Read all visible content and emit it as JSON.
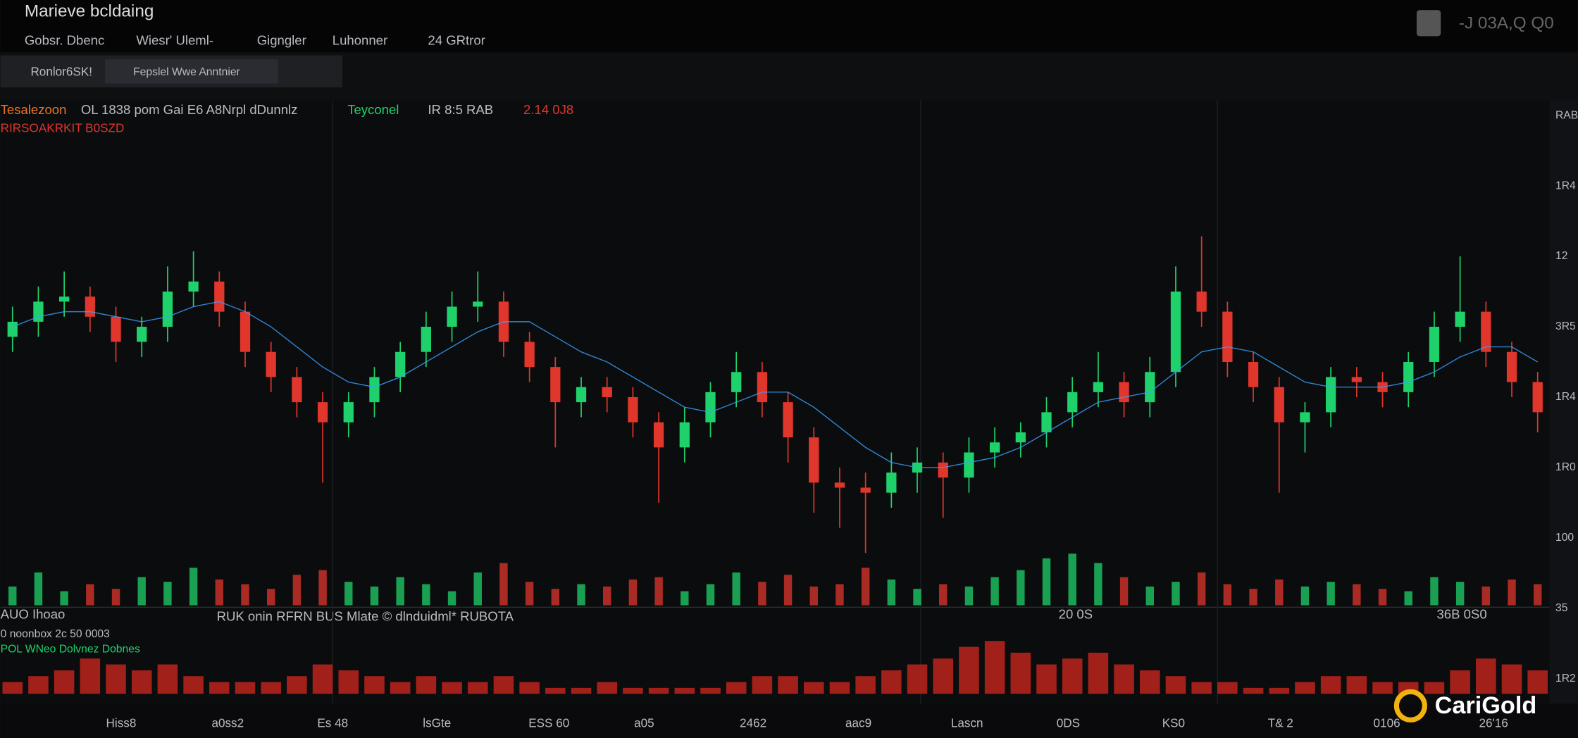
{
  "header": {
    "title": "Marieve bcldaing",
    "tabs": [
      "Gobsr. Dbenc",
      "Wiesr' Uleml-",
      "Gigngler",
      "Luhonner",
      "24 GRtror"
    ],
    "right_text": "-J 03A,Q Q0"
  },
  "toolbar": {
    "symbol": "Ronlor6SK!",
    "search": "Fepslel Wwe Anntnier"
  },
  "legend": {
    "name": "Tesalezoon",
    "info": "OL 1838 pom Gai E6 A8Nrpl dDunnlz",
    "tag": "Teyconel",
    "stat": "IR 8:5 RAB",
    "change": "2.14 0J8",
    "sub": "RIRSOAKRKIT B0SZD"
  },
  "pane": {
    "title": "RUK onin RFRN BUS Mlate © dlnduidml* RUBOTA",
    "mid": "20 0S",
    "right": "36B 0S0",
    "label1": "AUO Ihoao",
    "label2": "0 noonbox 2c 50 0003",
    "label3": "POL WNeo Dolvnez Dobnes"
  },
  "watermark": "CariGold",
  "chart_data": {
    "type": "candlestick",
    "up_color": "#1fd16a",
    "down_color": "#e0362c",
    "ylim": [
      0,
      100
    ],
    "open": [
      53,
      56,
      60,
      61,
      57,
      52,
      55,
      62,
      64,
      58,
      50,
      45,
      40,
      36,
      40,
      45,
      50,
      55,
      59,
      60,
      52,
      47,
      40,
      43,
      41,
      36,
      31,
      36,
      42,
      46,
      40,
      33,
      24,
      23,
      22,
      26,
      28,
      25,
      30,
      32,
      34,
      38,
      42,
      44,
      40,
      46,
      62,
      58,
      48,
      43,
      36,
      38,
      45,
      44,
      42,
      48,
      55,
      58,
      50,
      44
    ],
    "high": [
      59,
      63,
      66,
      63,
      59,
      57,
      67,
      70,
      66,
      60,
      52,
      47,
      42,
      42,
      47,
      52,
      58,
      62,
      66,
      62,
      54,
      49,
      45,
      45,
      43,
      38,
      39,
      44,
      50,
      48,
      42,
      35,
      27,
      26,
      30,
      31,
      30,
      33,
      35,
      36,
      41,
      45,
      50,
      46,
      49,
      67,
      73,
      60,
      50,
      45,
      40,
      47,
      47,
      46,
      50,
      58,
      69,
      60,
      52,
      46
    ],
    "low": [
      50,
      53,
      57,
      54,
      48,
      49,
      52,
      59,
      55,
      47,
      42,
      37,
      24,
      33,
      37,
      42,
      47,
      52,
      56,
      49,
      44,
      31,
      37,
      38,
      33,
      20,
      28,
      33,
      39,
      37,
      28,
      18,
      15,
      10,
      19,
      22,
      17,
      22,
      27,
      29,
      31,
      35,
      39,
      37,
      37,
      43,
      55,
      45,
      40,
      22,
      30,
      35,
      41,
      39,
      39,
      45,
      52,
      47,
      41,
      34
    ],
    "close": [
      56,
      60,
      61,
      57,
      52,
      55,
      62,
      64,
      58,
      50,
      45,
      40,
      36,
      40,
      45,
      50,
      55,
      59,
      60,
      52,
      47,
      40,
      43,
      41,
      36,
      31,
      36,
      42,
      46,
      40,
      33,
      24,
      23,
      22,
      26,
      28,
      25,
      30,
      32,
      34,
      38,
      42,
      44,
      40,
      46,
      62,
      58,
      48,
      43,
      36,
      38,
      45,
      44,
      42,
      48,
      55,
      58,
      50,
      44,
      38
    ],
    "ma": {
      "color": "#3aa0ff",
      "values": [
        55,
        57,
        58,
        58,
        57,
        56,
        57,
        59,
        60,
        58,
        55,
        51,
        47,
        44,
        43,
        45,
        48,
        51,
        54,
        56,
        56,
        53,
        50,
        48,
        45,
        42,
        39,
        38,
        40,
        42,
        42,
        39,
        35,
        31,
        28,
        27,
        27,
        28,
        29,
        31,
        34,
        37,
        40,
        41,
        42,
        46,
        50,
        51,
        50,
        47,
        44,
        43,
        43,
        43,
        44,
        46,
        49,
        51,
        51,
        48
      ]
    },
    "volume": {
      "ylim": [
        0,
        30
      ],
      "values": [
        8,
        14,
        6,
        9,
        7,
        12,
        10,
        16,
        11,
        9,
        7,
        13,
        15,
        10,
        8,
        12,
        9,
        6,
        14,
        18,
        10,
        7,
        9,
        8,
        11,
        12,
        6,
        9,
        14,
        10,
        13,
        8,
        9,
        16,
        11,
        7,
        9,
        8,
        12,
        15,
        20,
        22,
        18,
        12,
        8,
        10,
        14,
        9,
        7,
        11,
        8,
        10,
        9,
        7,
        6,
        12,
        10,
        8,
        11,
        9
      ]
    },
    "indicator": {
      "ylim": [
        0,
        12
      ],
      "color": "#c8261e",
      "values": [
        2,
        3,
        4,
        6,
        5,
        4,
        5,
        3,
        2,
        2,
        2,
        3,
        5,
        4,
        3,
        2,
        3,
        2,
        2,
        3,
        2,
        1,
        1,
        2,
        1,
        1,
        1,
        1,
        2,
        3,
        3,
        2,
        2,
        3,
        4,
        5,
        6,
        8,
        9,
        7,
        5,
        6,
        7,
        5,
        4,
        3,
        2,
        2,
        1,
        1,
        2,
        3,
        3,
        2,
        2,
        2,
        4,
        6,
        5,
        4
      ]
    },
    "price_labels": [
      "RAB",
      "1R4",
      "12",
      "3R5",
      "1R4",
      "1R0",
      "100",
      "35",
      "1R2"
    ],
    "x_labels": [
      "Hiss8",
      "a0ss2",
      "Es 48",
      "lsGte",
      "ESS 60",
      "a05",
      "2462",
      "aac9",
      "Lascn",
      "0DS",
      "KS0",
      "T& 2",
      "0106",
      "26'16"
    ]
  }
}
